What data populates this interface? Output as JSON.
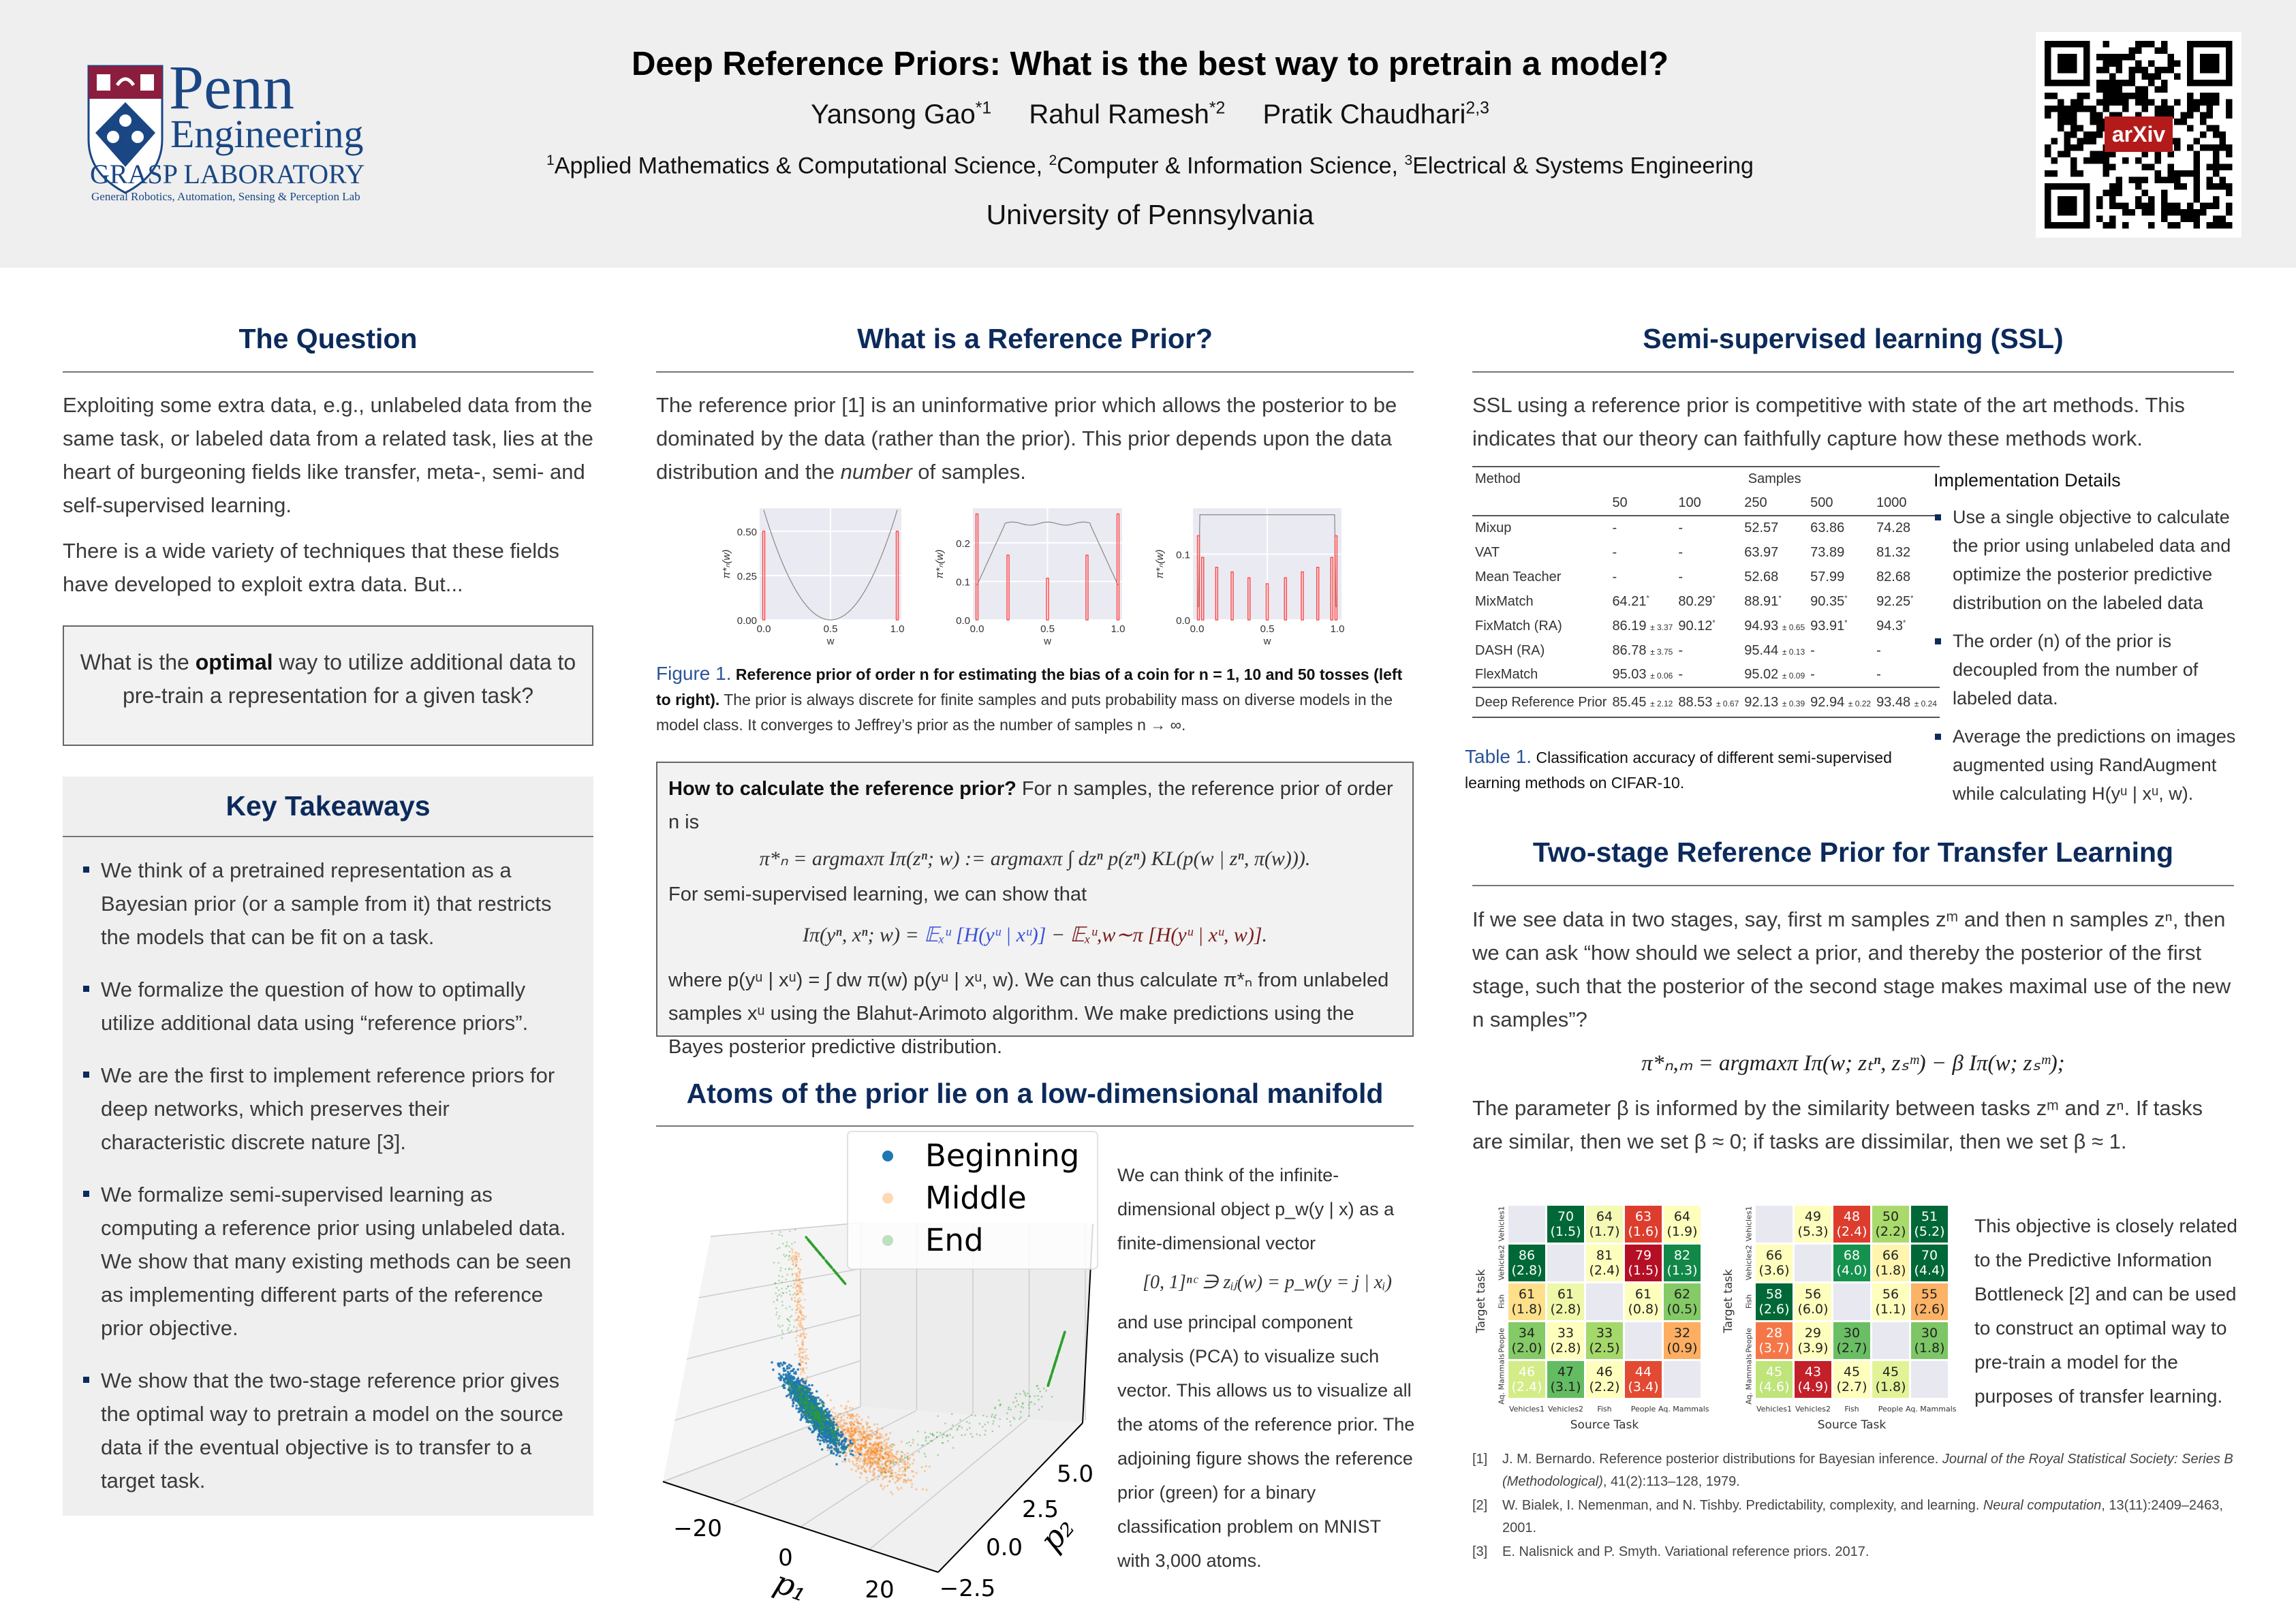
{
  "header": {
    "title": "Deep Reference Priors: What is the best way to pretrain a model?",
    "authors": [
      {
        "name": "Yansong Gao",
        "sup": "*1"
      },
      {
        "name": "Rahul Ramesh",
        "sup": "*2"
      },
      {
        "name": "Pratik Chaudhari",
        "sup": "2,3"
      }
    ],
    "affiliations": [
      {
        "sup": "1",
        "text": "Applied Mathematics & Computational Science, "
      },
      {
        "sup": "2",
        "text": "Computer & Information Science, "
      },
      {
        "sup": "3",
        "text": "Electrical & Systems Engineering"
      }
    ],
    "university": "University of Pennsylvania",
    "logo": {
      "penn": "Penn",
      "engineering": "Engineering",
      "lab": "GRASP LABORATORY",
      "lab_subtitle": "General Robotics, Automation, Sensing & Perception Lab"
    },
    "qr_label": "arXiv"
  },
  "colors": {
    "heading": "#0c2a5b",
    "caption_label": "#2b5597",
    "panel": "#efefef",
    "atom": "#ff4d4d"
  },
  "question": {
    "heading": "The Question",
    "paragraphs": [
      "Exploiting some extra data, e.g., unlabeled data from the same task, or labeled data from a related task, lies at the heart of burgeoning fields like transfer, meta-, semi- and self-supervised learning.",
      "There is a wide variety of techniques that these fields have developed to exploit extra data. But..."
    ],
    "callout": {
      "pre": "What is the ",
      "bold": "optimal",
      "post": " way to utilize additional data to pre-train a representation for a given task?"
    }
  },
  "takeaways": {
    "heading": "Key Takeaways",
    "items": [
      "We think of a pretrained representation as a Bayesian prior (or a sample from it) that restricts the models that can be fit on a task.",
      "We formalize the question of how to optimally utilize additional data using “reference priors”.",
      "We are the first to implement reference priors for deep networks, which preserves their characteristic discrete nature [3].",
      "We formalize semi-supervised learning as computing a reference prior using unlabeled data. We show that many existing methods can be seen as implementing different parts of the reference prior objective.",
      "We show that the two-stage reference prior gives the optimal way to pretrain a model on the source data if the eventual objective is to transfer to a target task."
    ]
  },
  "refprior": {
    "heading": "What is a Reference Prior?",
    "para": {
      "pre": "The reference prior [1] is an uninformative prior which allows the posterior to be dominated by the data (rather than the prior). This prior depends upon the data distribution and the ",
      "em": "number",
      "post": " of samples."
    },
    "caption": {
      "label": "Figure 1.",
      "bold": "Reference prior of order n for estimating the bias of a coin for n = 1, 10 and 50 tosses (left to right).",
      "text": " The prior is always discrete for finite samples and puts probability mass on diverse models in the model class. It converges to Jeffrey’s prior as the number of samples n → ∞."
    },
    "box": {
      "bold": "How to calculate the reference prior?",
      "intro": " For n samples, the reference prior of order n is",
      "eq1": "π*ₙ = argmaxπ Iπ(zⁿ; w) := argmaxπ ∫ dzⁿ p(zⁿ) KL(p(w | zⁿ, π(w))).",
      "ssl": "For semi-supervised learning, we can show that",
      "eq2_lhs": "Iπ(yⁿ, xⁿ; w) = ",
      "eq2_blue": "𝔼ₓᵘ [H(yᵘ | xᵘ)]",
      "eq2_mid": " − ",
      "eq2_red": "𝔼ₓᵘ,w∼π [H(yᵘ | xᵘ, w)]",
      "eq2_end": ".",
      "outro": "where p(yᵘ | xᵘ) = ∫ dw π(w) p(yᵘ | xᵘ, w). We can thus calculate π*ₙ from unlabeled samples xᵘ using the Blahut-Arimoto algorithm. We make predictions using the Bayes posterior predictive distribution."
    }
  },
  "atoms": {
    "heading": "Atoms of the prior lie on a low-dimensional manifold",
    "text1": "We can think of the infinite-dimensional object p_w(y | x) as a finite-dimensional vector",
    "eq": "[0, 1]ⁿᶜ ∋ zᵢⱼ(w) = p_w(y = j | xᵢ)",
    "text2": "and use principal component analysis (PCA) to visualize such vector. This allows us to visualize all the atoms of the reference prior. The adjoining figure shows the reference prior (green) for a binary classification problem on MNIST with 3,000 atoms."
  },
  "ssl": {
    "heading": "Semi-supervised learning (SSL)",
    "para": "SSL using a reference prior is competitive with state of the art methods. This indicates that our theory can faithfully capture how these methods work.",
    "table": {
      "method_header": "Method",
      "samples_header": "Samples",
      "columns": [
        "50",
        "100",
        "250",
        "500",
        "1000"
      ],
      "rows": [
        {
          "method": "Mixup",
          "cells": [
            {
              "v": "-"
            },
            {
              "v": "-"
            },
            {
              "v": "52.57"
            },
            {
              "v": "63.86"
            },
            {
              "v": "74.28"
            }
          ]
        },
        {
          "method": "VAT",
          "cells": [
            {
              "v": "-"
            },
            {
              "v": "-"
            },
            {
              "v": "63.97"
            },
            {
              "v": "73.89"
            },
            {
              "v": "81.32"
            }
          ]
        },
        {
          "method": "Mean Teacher",
          "cells": [
            {
              "v": "-"
            },
            {
              "v": "-"
            },
            {
              "v": "52.68"
            },
            {
              "v": "57.99"
            },
            {
              "v": "82.68"
            }
          ]
        },
        {
          "method": "MixMatch",
          "cells": [
            {
              "v": "64.21",
              "star": "*"
            },
            {
              "v": "80.29",
              "star": "*"
            },
            {
              "v": "88.91",
              "star": "*"
            },
            {
              "v": "90.35",
              "star": "*"
            },
            {
              "v": "92.25",
              "star": "*"
            }
          ]
        },
        {
          "method": "FixMatch (RA)",
          "cells": [
            {
              "v": "86.19",
              "sd": "± 3.37"
            },
            {
              "v": "90.12",
              "star": "*"
            },
            {
              "v": "94.93",
              "sd": "± 0.65"
            },
            {
              "v": "93.91",
              "star": "*"
            },
            {
              "v": "94.3",
              "star": "*"
            }
          ]
        },
        {
          "method": "DASH (RA)",
          "cells": [
            {
              "v": "86.78",
              "sd": "± 3.75"
            },
            {
              "v": "-"
            },
            {
              "v": "95.44",
              "sd": "± 0.13"
            },
            {
              "v": "-"
            },
            {
              "v": "-"
            }
          ]
        },
        {
          "method": "FlexMatch",
          "cells": [
            {
              "v": "95.03",
              "sd": "± 0.06"
            },
            {
              "v": "-"
            },
            {
              "v": "95.02",
              "sd": "± 0.09"
            },
            {
              "v": "-"
            },
            {
              "v": "-"
            }
          ]
        },
        {
          "method": "Deep Reference Prior",
          "cells": [
            {
              "v": "85.45",
              "sd": "± 2.12"
            },
            {
              "v": "88.53",
              "sd": "± 0.67"
            },
            {
              "v": "92.13",
              "sd": "± 0.39"
            },
            {
              "v": "92.94",
              "sd": "± 0.22"
            },
            {
              "v": "93.48",
              "sd": "± 0.24"
            }
          ]
        }
      ]
    },
    "caption": {
      "label": "Table 1.",
      "text": " Classification accuracy of different semi-supervised learning methods on CIFAR-10."
    },
    "impl": {
      "heading": "Implementation Details",
      "items": [
        "Use a single objective to calculate the prior using unlabeled data and optimize the posterior predictive distribution on the labeled data",
        "The order (n) of the prior is decoupled from the number of labeled data.",
        "Average the predictions on images augmented using RandAugment while calculating H(yᵘ | xᵘ, w)."
      ]
    }
  },
  "twostage": {
    "heading": "Two-stage Reference Prior for Transfer Learning",
    "para1": "If we see data in two stages, say, first m samples zᵐ and then n samples zⁿ, then we can ask “how should we select a prior, and thereby the posterior of the first stage, such that the posterior of the second stage makes maximal use of the new n samples”?",
    "eq": "π*ₙ,ₘ = argmaxπ Iπ(w; zₜⁿ, zₛᵐ) − β Iπ(w; zₛᵐ);",
    "para2": "The parameter β is informed by the similarity between tasks zᵐ and zⁿ. If tasks are similar, then we set β ≈ 0; if tasks are dissimilar, then we set β ≈ 1.",
    "side": "This objective is closely related to the Predictive Information Bottleneck [2] and can be used to construct an optimal way to pre-train a model for the purposes of transfer learning."
  },
  "references": [
    {
      "num": "[1]",
      "text": "J. M. Bernardo. Reference posterior distributions for Bayesian inference. ",
      "em": "Journal of the Royal Statistical Society: Series B (Methodological)",
      "tail": ", 41(2):113–128, 1979."
    },
    {
      "num": "[2]",
      "text": "W. Bialek, I. Nemenman, and N. Tishby. Predictability, complexity, and learning. ",
      "em": "Neural computation",
      "tail": ", 13(11):2409–2463, 2001."
    },
    {
      "num": "[3]",
      "text": "E. Nalisnick and P. Smyth. Variational reference priors. 2017.",
      "em": "",
      "tail": ""
    }
  ],
  "chart_data": [
    {
      "type": "bar",
      "title": "",
      "xlabel": "w",
      "ylabel": "π*ₙ(w)",
      "n": 1,
      "xlim": [
        0,
        1
      ],
      "ylim": [
        0,
        0.63
      ],
      "xticks": [
        "0.0",
        "0.5",
        "1.0"
      ],
      "yticks": [
        "0.00",
        "0.25",
        "0.50"
      ],
      "x": [
        0,
        1
      ],
      "values": [
        0.5,
        0.5
      ],
      "grid": true
    },
    {
      "type": "bar",
      "title": "",
      "xlabel": "w",
      "ylabel": "π*ₙ(w)",
      "n": 10,
      "xlim": [
        0,
        1
      ],
      "ylim": [
        0,
        0.29
      ],
      "xticks": [
        "0.0",
        "0.5",
        "1.0"
      ],
      "yticks": [
        "0.0",
        "0.1",
        "0.2"
      ],
      "x": [
        0,
        0.22,
        0.5,
        0.78,
        1
      ],
      "values": [
        0.275,
        0.168,
        0.108,
        0.168,
        0.275
      ],
      "grid": true
    },
    {
      "type": "bar",
      "title": "",
      "xlabel": "w",
      "ylabel": "π*ₙ(w)",
      "n": 50,
      "xlim": [
        0,
        1
      ],
      "ylim": [
        0,
        0.17
      ],
      "xticks": [
        "0.0",
        "0.5",
        "1.0"
      ],
      "yticks": [
        "0.0",
        "0.1"
      ],
      "x": [
        0.01,
        0.04,
        0.14,
        0.25,
        0.37,
        0.5,
        0.63,
        0.75,
        0.86,
        0.96,
        0.99
      ],
      "values": [
        0.128,
        0.095,
        0.08,
        0.073,
        0.064,
        0.055,
        0.064,
        0.073,
        0.08,
        0.095,
        0.128
      ],
      "grid": true
    },
    {
      "type": "scatter",
      "title": "",
      "xlabel": "p₁",
      "ylabel": "p₂",
      "xticks": [
        "−20",
        "0",
        "20"
      ],
      "yticks": [
        "−2.5",
        "0.0",
        "2.5",
        "5.0"
      ],
      "legend_position": "top",
      "series": [
        {
          "name": "Beginning",
          "color": "#1f77b4"
        },
        {
          "name": "Middle",
          "color": "#ff7f0e"
        },
        {
          "name": "End",
          "color": "#2ca02c"
        }
      ]
    },
    {
      "type": "heatmap",
      "xlabel": "Source Task",
      "ylabel": "Target task",
      "categories": [
        "Vehicles1",
        "Vehicles2",
        "Fish",
        "People",
        "Aq. Mammals"
      ],
      "values": [
        [
          null,
          "70\n(1.5)",
          "64\n(1.7)",
          "63\n(1.6)",
          "64\n(1.9)"
        ],
        [
          "86\n(2.8)",
          null,
          "81\n(2.4)",
          "79\n(1.5)",
          "82\n(1.3)"
        ],
        [
          "61\n(1.8)",
          "61\n(2.8)",
          null,
          "61\n(0.8)",
          "62\n(0.5)"
        ],
        [
          "34\n(2.0)",
          "33\n(2.8)",
          "33\n(2.5)",
          null,
          "32\n(0.9)"
        ],
        [
          "46\n(2.4)",
          "47\n(3.1)",
          "46\n(2.2)",
          "44\n(3.4)",
          null
        ]
      ],
      "colors": [
        [
          "#e8e8f0",
          "#006837",
          "#f4f9b4",
          "#dc3d2d",
          "#fefebd"
        ],
        [
          "#006837",
          "#e8e8f0",
          "#fefebd",
          "#b50f26",
          "#118848"
        ],
        [
          "#fee08b",
          "#eef8a8",
          "#e8e8f0",
          "#fefebd",
          "#84ca66"
        ],
        [
          "#84ca66",
          "#fefebd",
          "#a5d86a",
          "#e8e8f0",
          "#fdae61"
        ],
        [
          "#d3ec87",
          "#63bc62",
          "#fefebd",
          "#e34a33",
          "#e8e8f0"
        ]
      ]
    },
    {
      "type": "heatmap",
      "xlabel": "Source Task",
      "ylabel": "Target task",
      "categories": [
        "Vehicles1",
        "Vehicles2",
        "Fish",
        "People",
        "Aq. Mammals"
      ],
      "values": [
        [
          null,
          "49\n(5.3)",
          "48\n(2.4)",
          "50\n(2.2)",
          "51\n(5.2)"
        ],
        [
          "66\n(3.6)",
          null,
          "68\n(4.0)",
          "66\n(1.8)",
          "70\n(4.4)"
        ],
        [
          "58\n(2.6)",
          "56\n(6.0)",
          null,
          "56\n(1.1)",
          "55\n(2.6)"
        ],
        [
          "28\n(3.7)",
          "29\n(3.9)",
          "30\n(2.7)",
          null,
          "30\n(1.8)"
        ],
        [
          "45\n(4.6)",
          "43\n(4.9)",
          "45\n(2.7)",
          "45\n(1.8)",
          null
        ]
      ],
      "colors": [
        [
          "#e8e8f0",
          "#fefebd",
          "#dc3d2d",
          "#a9da6c",
          "#006837"
        ],
        [
          "#fefebd",
          "#e8e8f0",
          "#15924e",
          "#fff5ae",
          "#006837"
        ],
        [
          "#006837",
          "#fefebd",
          "#e8e8f0",
          "#fefebd",
          "#fdb365"
        ],
        [
          "#f57748",
          "#fefebd",
          "#6abe63",
          "#e8e8f0",
          "#7cc665"
        ],
        [
          "#bfe47a",
          "#c3202a",
          "#fefebd",
          "#e2f397",
          "#e8e8f0"
        ]
      ]
    }
  ]
}
